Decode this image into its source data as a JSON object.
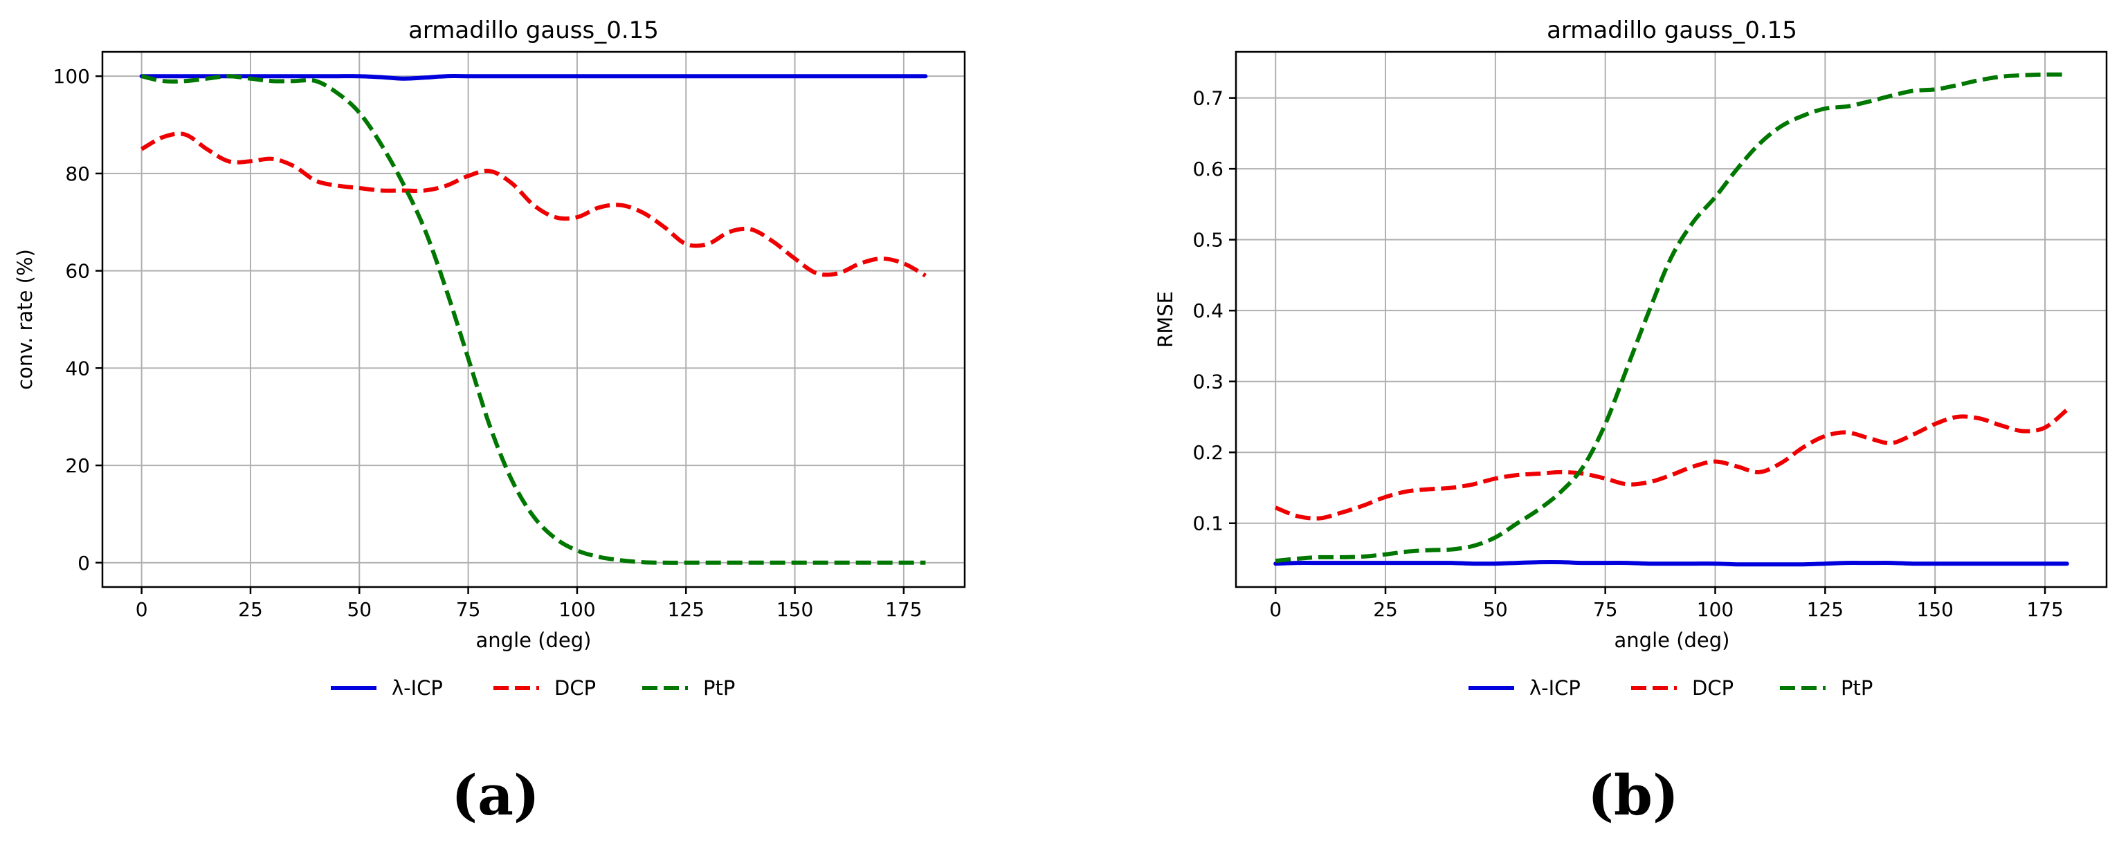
{
  "legend": [
    {
      "name": "λ-ICP",
      "color": "#0000dd",
      "dash": "solid"
    },
    {
      "name": "DCP",
      "color": "#ee0000",
      "dash": "dashed"
    },
    {
      "name": "PtP",
      "color": "#007700",
      "dash": "dashed"
    }
  ],
  "chart_data": [
    {
      "type": "line",
      "panel_label": "(a)",
      "title": "armadillo gauss_0.15",
      "xlabel": "angle (deg)",
      "ylabel": "conv. rate (%)",
      "xlim": [
        -9,
        189
      ],
      "ylim": [
        -5,
        105
      ],
      "xticks": [
        0,
        25,
        50,
        75,
        100,
        125,
        150,
        175
      ],
      "yticks": [
        0,
        20,
        40,
        60,
        80,
        100
      ],
      "ytick_labels": [
        "0",
        "20",
        "40",
        "60",
        "80",
        "100"
      ],
      "grid": true,
      "legend_position": "bottom-center",
      "x": [
        0,
        5,
        10,
        15,
        20,
        25,
        30,
        35,
        40,
        45,
        50,
        55,
        60,
        65,
        70,
        75,
        80,
        85,
        90,
        95,
        100,
        105,
        110,
        115,
        120,
        125,
        130,
        135,
        140,
        145,
        150,
        155,
        160,
        165,
        170,
        175,
        180
      ],
      "series": [
        {
          "name": "λ-ICP",
          "color": "#0000dd",
          "dash": "solid",
          "values": [
            100,
            100,
            100,
            100,
            100,
            100,
            100,
            100,
            100,
            100,
            100,
            99.8,
            99.5,
            99.7,
            100,
            100,
            100,
            100,
            100,
            100,
            100,
            100,
            100,
            100,
            100,
            100,
            100,
            100,
            100,
            100,
            100,
            100,
            100,
            100,
            100,
            100,
            100
          ]
        },
        {
          "name": "DCP",
          "color": "#ee0000",
          "dash": "dashed",
          "values": [
            85,
            87.5,
            88,
            85,
            82.5,
            82.5,
            83,
            81.5,
            78.5,
            77.5,
            77,
            76.5,
            76.5,
            76.5,
            77.5,
            79.5,
            80.5,
            78,
            73.5,
            71,
            71,
            73,
            73.5,
            72,
            69,
            65.5,
            65.5,
            68,
            68.5,
            66,
            62.5,
            59.5,
            59.5,
            61.5,
            62.5,
            61.5,
            59
          ]
        },
        {
          "name": "PtP",
          "color": "#007700",
          "dash": "dashed",
          "values": [
            100,
            99,
            99,
            99.5,
            100,
            99.5,
            99,
            99,
            99,
            96.5,
            92.5,
            86,
            78,
            68.5,
            56,
            42,
            28,
            17,
            9.5,
            5,
            2.5,
            1.2,
            0.5,
            0.1,
            0,
            0,
            0,
            0,
            0,
            0,
            0,
            0,
            0,
            0,
            0,
            0,
            0
          ]
        }
      ]
    },
    {
      "type": "line",
      "panel_label": "(b)",
      "title": "armadillo gauss_0.15",
      "xlabel": "angle (deg)",
      "ylabel": "RMSE",
      "xlim": [
        -9,
        189
      ],
      "ylim": [
        0.01,
        0.765
      ],
      "xticks": [
        0,
        25,
        50,
        75,
        100,
        125,
        150,
        175
      ],
      "yticks": [
        0.1,
        0.2,
        0.3,
        0.4,
        0.5,
        0.6,
        0.7
      ],
      "ytick_labels": [
        "0.1",
        "0.2",
        "0.3",
        "0.4",
        "0.5",
        "0.6",
        "0.7"
      ],
      "grid": true,
      "legend_position": "bottom-center",
      "x": [
        0,
        5,
        10,
        15,
        20,
        25,
        30,
        35,
        40,
        45,
        50,
        55,
        60,
        65,
        70,
        75,
        80,
        85,
        90,
        95,
        100,
        105,
        110,
        115,
        120,
        125,
        130,
        135,
        140,
        145,
        150,
        155,
        160,
        165,
        170,
        175,
        180
      ],
      "series": [
        {
          "name": "λ-ICP",
          "color": "#0000dd",
          "dash": "solid",
          "values": [
            0.043,
            0.044,
            0.044,
            0.044,
            0.044,
            0.044,
            0.044,
            0.044,
            0.044,
            0.043,
            0.043,
            0.044,
            0.045,
            0.045,
            0.044,
            0.044,
            0.044,
            0.043,
            0.043,
            0.043,
            0.043,
            0.042,
            0.042,
            0.042,
            0.042,
            0.043,
            0.044,
            0.044,
            0.044,
            0.043,
            0.043,
            0.043,
            0.043,
            0.043,
            0.043,
            0.043,
            0.043
          ]
        },
        {
          "name": "DCP",
          "color": "#ee0000",
          "dash": "dashed",
          "values": [
            0.122,
            0.11,
            0.107,
            0.115,
            0.125,
            0.137,
            0.145,
            0.148,
            0.15,
            0.155,
            0.163,
            0.168,
            0.17,
            0.172,
            0.17,
            0.163,
            0.155,
            0.158,
            0.168,
            0.18,
            0.187,
            0.18,
            0.172,
            0.185,
            0.207,
            0.223,
            0.228,
            0.22,
            0.213,
            0.225,
            0.24,
            0.25,
            0.248,
            0.238,
            0.23,
            0.235,
            0.26
          ]
        },
        {
          "name": "PtP",
          "color": "#007700",
          "dash": "dashed",
          "values": [
            0.047,
            0.05,
            0.052,
            0.052,
            0.053,
            0.056,
            0.06,
            0.062,
            0.063,
            0.068,
            0.08,
            0.1,
            0.12,
            0.145,
            0.18,
            0.24,
            0.32,
            0.4,
            0.475,
            0.525,
            0.56,
            0.6,
            0.635,
            0.66,
            0.675,
            0.685,
            0.688,
            0.695,
            0.703,
            0.71,
            0.712,
            0.718,
            0.725,
            0.73,
            0.732,
            0.733,
            0.733
          ]
        }
      ]
    }
  ]
}
